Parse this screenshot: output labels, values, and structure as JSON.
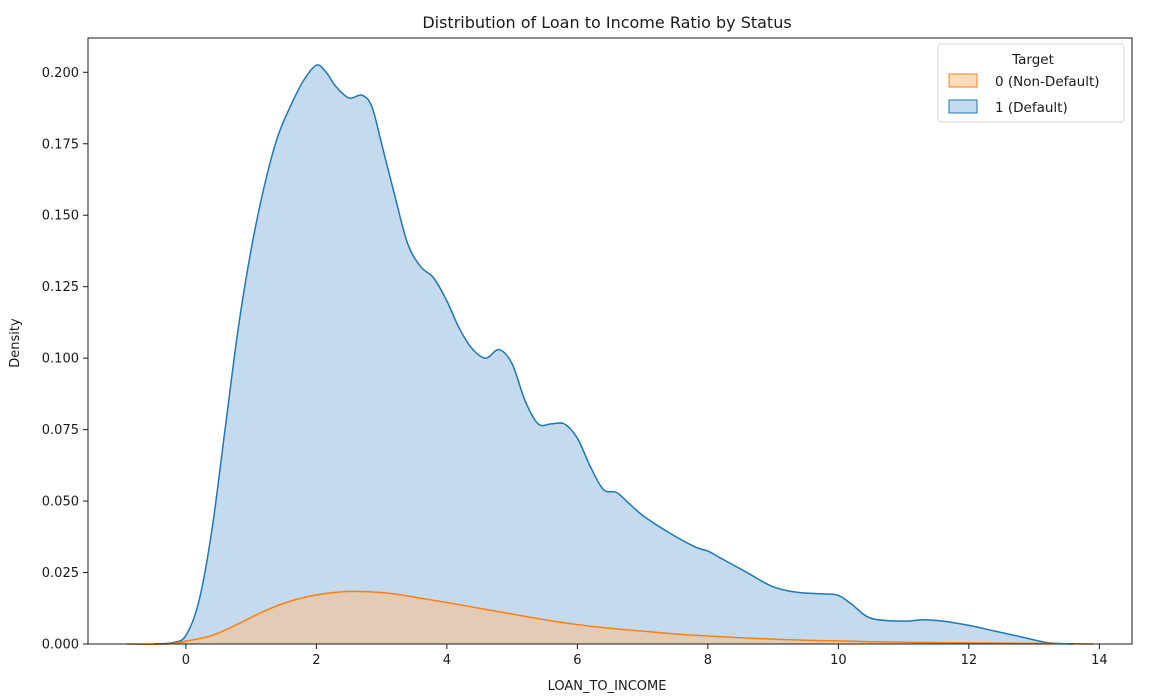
{
  "chart_data": {
    "type": "area",
    "title": "Distribution of Loan to Income Ratio by Status",
    "xlabel": "LOAN_TO_INCOME",
    "ylabel": "Density",
    "xlim": [
      -1.5,
      14.5
    ],
    "ylim": [
      0,
      0.212
    ],
    "xticks": [
      0,
      2,
      4,
      6,
      8,
      10,
      12,
      14
    ],
    "xtick_labels": [
      "0",
      "2",
      "4",
      "6",
      "8",
      "10",
      "12",
      "14"
    ],
    "yticks": [
      0,
      0.025,
      0.05,
      0.075,
      0.1,
      0.125,
      0.15,
      0.175,
      0.2
    ],
    "ytick_labels": [
      "0.000",
      "0.025",
      "0.050",
      "0.075",
      "0.100",
      "0.125",
      "0.150",
      "0.175",
      "0.200"
    ],
    "grid": false,
    "legend": {
      "title": "Target",
      "placement": "top-right"
    },
    "series": [
      {
        "name": "0 (Non-Default)",
        "color": "#ff7f0e",
        "fill": "#ffbf86",
        "x": [
          -0.9,
          -0.3,
          0,
          0.4,
          0.8,
          1.2,
          1.6,
          2.0,
          2.4,
          2.8,
          3.2,
          3.6,
          4.0,
          4.5,
          5.0,
          5.5,
          6.0,
          6.5,
          7.0,
          7.5,
          8.0,
          8.5,
          9.0,
          9.5,
          10.0,
          10.5,
          11.0,
          11.5,
          12.0,
          12.5,
          13.0,
          13.5,
          13.9
        ],
        "y": [
          0,
          0,
          0.001,
          0.003,
          0.007,
          0.0115,
          0.015,
          0.0172,
          0.0183,
          0.0183,
          0.0175,
          0.016,
          0.0145,
          0.0125,
          0.0105,
          0.0085,
          0.0068,
          0.0055,
          0.0045,
          0.0035,
          0.0028,
          0.0022,
          0.0017,
          0.0013,
          0.0011,
          0.0008,
          0.0006,
          0.0005,
          0.0004,
          0.0003,
          0.0002,
          0.0001,
          0
        ]
      },
      {
        "name": "1 (Default)",
        "color": "#1f77b4",
        "fill": "#9fc3e3",
        "x": [
          -0.5,
          -0.2,
          0,
          0.2,
          0.4,
          0.6,
          0.8,
          1.0,
          1.2,
          1.4,
          1.6,
          1.8,
          2.0,
          2.15,
          2.3,
          2.5,
          2.7,
          2.85,
          3.0,
          3.2,
          3.4,
          3.6,
          3.8,
          4.0,
          4.2,
          4.4,
          4.6,
          4.8,
          5.0,
          5.2,
          5.4,
          5.6,
          5.8,
          6.0,
          6.2,
          6.4,
          6.6,
          6.8,
          7.0,
          7.4,
          7.8,
          8.0,
          8.2,
          8.6,
          9.0,
          9.4,
          9.8,
          10.0,
          10.2,
          10.5,
          11.0,
          11.3,
          11.6,
          12.0,
          12.4,
          12.8,
          13.2,
          13.6
        ],
        "y": [
          0,
          0.0005,
          0.003,
          0.015,
          0.04,
          0.075,
          0.11,
          0.138,
          0.16,
          0.177,
          0.188,
          0.197,
          0.2025,
          0.2,
          0.195,
          0.191,
          0.192,
          0.188,
          0.175,
          0.157,
          0.14,
          0.132,
          0.128,
          0.12,
          0.11,
          0.103,
          0.1,
          0.103,
          0.098,
          0.085,
          0.077,
          0.077,
          0.077,
          0.072,
          0.062,
          0.054,
          0.053,
          0.049,
          0.045,
          0.039,
          0.034,
          0.0325,
          0.03,
          0.025,
          0.02,
          0.018,
          0.0175,
          0.017,
          0.014,
          0.009,
          0.008,
          0.0085,
          0.008,
          0.0065,
          0.0045,
          0.0025,
          0.0005,
          0
        ]
      }
    ]
  }
}
